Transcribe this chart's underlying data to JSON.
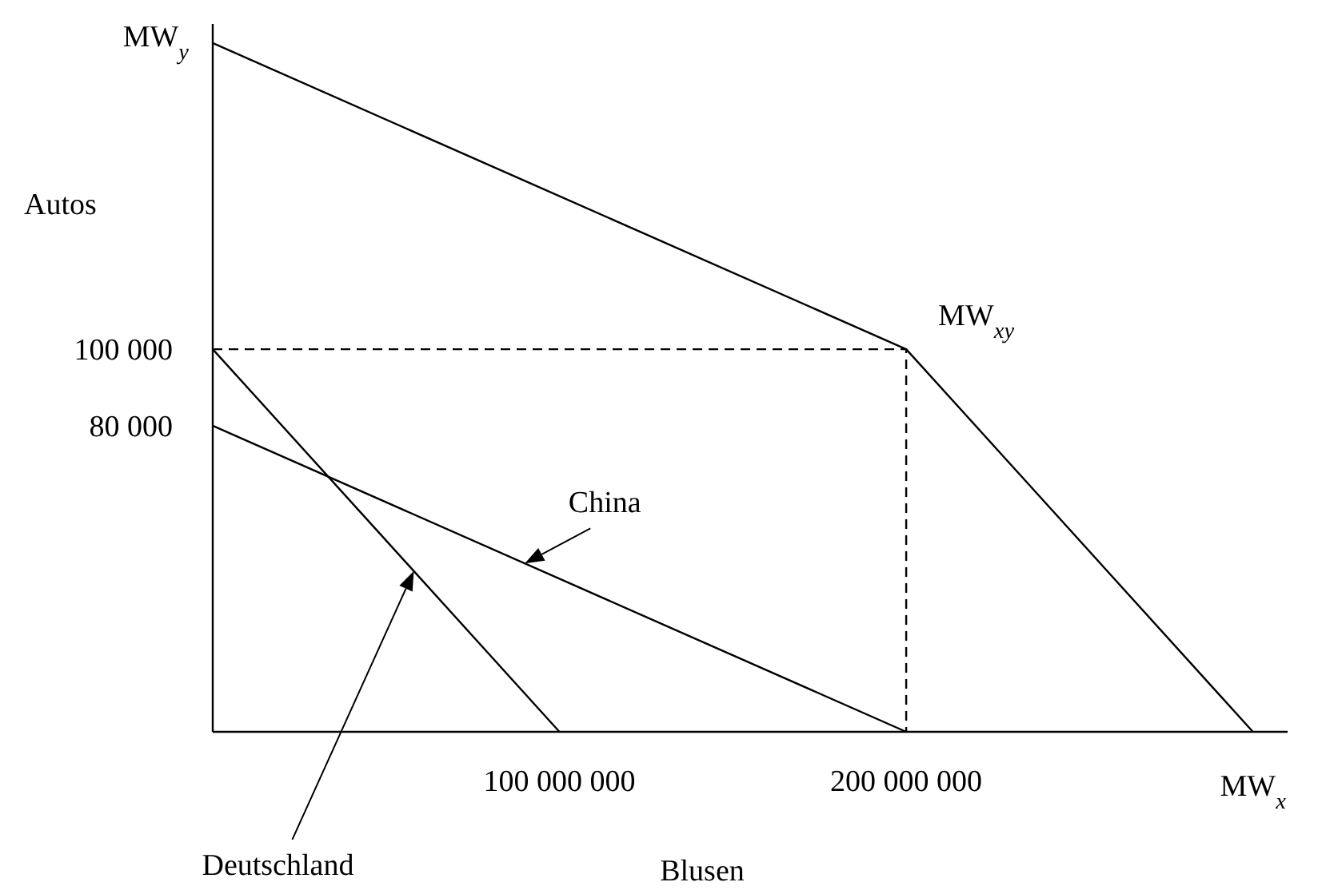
{
  "chart_data": {
    "type": "line",
    "xlabel": "Blusen",
    "ylabel": "Autos",
    "xlim": [
      0,
      310000000
    ],
    "ylim": [
      0,
      185000
    ],
    "xticks": [
      {
        "value": 100000000,
        "label": "100 000 000"
      },
      {
        "value": 200000000,
        "label": "200 000 000"
      }
    ],
    "yticks": [
      {
        "value": 80000,
        "label": "80 000"
      },
      {
        "value": 100000,
        "label": "100 000"
      }
    ],
    "grid": false,
    "series": [
      {
        "name": "Deutschland",
        "color": "#000000",
        "x": [
          0,
          100000000
        ],
        "values": [
          100000,
          0
        ]
      },
      {
        "name": "China",
        "color": "#000000",
        "x": [
          0,
          200000000
        ],
        "values": [
          80000,
          0
        ]
      },
      {
        "color": "#000000",
        "x": [
          0,
          200000000,
          300000000
        ],
        "values": [
          180000,
          100000,
          0
        ]
      },
      {
        "color": "#000000",
        "line_style": "dashed",
        "x": [
          0,
          200000000,
          200000000
        ],
        "values": [
          100000,
          100000,
          0
        ]
      }
    ],
    "annotations": [
      {
        "text": "MW$_{y}$",
        "x": 0,
        "y": 180000
      },
      {
        "text": "MW$_{xy}$",
        "x": 200000000,
        "y": 100000
      },
      {
        "text": "MW$_{x}$",
        "x": 300000000,
        "y": 0
      }
    ]
  }
}
